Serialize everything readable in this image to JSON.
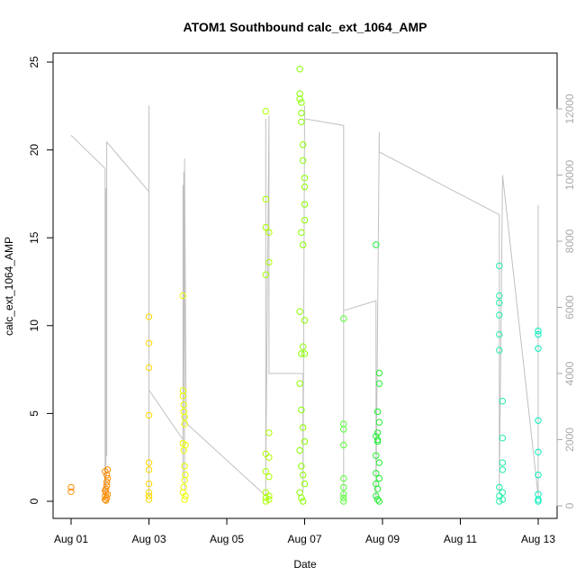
{
  "chart_data": {
    "type": "scatter",
    "title": "ATOM1 Southbound calc_ext_1064_AMP",
    "xlabel": "Date",
    "ylabel": "calc_ext_1064_AMP",
    "x_unit": "days",
    "xlim": [
      "2014-08-01",
      "2014-08-13"
    ],
    "ylim": [
      0,
      25
    ],
    "y2lim": [
      0,
      12000
    ],
    "x_ticks": [
      "Aug 01",
      "Aug 03",
      "Aug 05",
      "Aug 07",
      "Aug 09",
      "Aug 11",
      "Aug 13"
    ],
    "y_ticks": [
      0,
      5,
      10,
      15,
      20,
      25
    ],
    "y2_ticks": [
      0,
      2000,
      4000,
      6000,
      8000,
      10000,
      12000
    ],
    "grid": false,
    "colors": {
      "line": "#c0c0c0",
      "axis": "#000000",
      "right_axis": "#aaaaaa"
    },
    "series": [
      {
        "color": "#ff8c00",
        "x": [
          "2014-08-01 00:00",
          "2014-08-01 00:00",
          "2014-08-01 21:00",
          "2014-08-01 21:00",
          "2014-08-01 21:30",
          "2014-08-01 21:30",
          "2014-08-01 22:00",
          "2014-08-01 22:00",
          "2014-08-01 22:30",
          "2014-08-01 22:00",
          "2014-08-01 21:00",
          "2014-08-01 22:30",
          "2014-08-01 21:30",
          "2014-08-01 22:00",
          "2014-08-01 21:00",
          "2014-08-01 22:30"
        ],
        "y": [
          0.8,
          0.55,
          0.1,
          0.3,
          0.5,
          0.7,
          0.9,
          1.1,
          1.3,
          1.5,
          1.7,
          1.8,
          0.05,
          0.2,
          0.6,
          0.4
        ]
      },
      {
        "color": "#ffd700",
        "x": [
          "2014-08-03 00:00",
          "2014-08-03 00:00",
          "2014-08-03 00:00",
          "2014-08-03 00:00",
          "2014-08-03 00:00",
          "2014-08-03 00:00",
          "2014-08-03 00:00",
          "2014-08-03 00:00",
          "2014-08-03 00:00",
          "2014-08-03 00:00"
        ],
        "y": [
          10.5,
          9.0,
          7.6,
          4.9,
          2.2,
          1.8,
          1.0,
          0.5,
          0.3,
          0.1
        ]
      },
      {
        "color": "#eeff00",
        "x": [
          "2014-08-03 21:00",
          "2014-08-03 21:00",
          "2014-08-03 21:00",
          "2014-08-03 21:30",
          "2014-08-03 21:30",
          "2014-08-03 22:00",
          "2014-08-03 22:00",
          "2014-08-03 22:30",
          "2014-08-03 21:00",
          "2014-08-03 21:30",
          "2014-08-03 22:00",
          "2014-08-03 22:30",
          "2014-08-03 22:00",
          "2014-08-03 21:30",
          "2014-08-03 21:00",
          "2014-08-03 22:30",
          "2014-08-03 22:00"
        ],
        "y": [
          11.7,
          6.3,
          6.0,
          5.5,
          5.1,
          4.8,
          4.4,
          3.2,
          3.3,
          2.9,
          2.0,
          1.5,
          1.2,
          0.8,
          0.5,
          0.3,
          0.1
        ]
      },
      {
        "color": "#aaff00",
        "x": [
          "2014-08-06 00:00",
          "2014-08-06 00:00",
          "2014-08-06 00:00",
          "2014-08-06 02:00",
          "2014-08-06 02:00",
          "2014-08-06 00:00",
          "2014-08-06 02:00",
          "2014-08-06 00:00",
          "2014-08-06 02:00",
          "2014-08-06 00:00",
          "2014-08-06 02:00",
          "2014-08-06 00:00",
          "2014-08-06 02:00",
          "2014-08-06 00:00",
          "2014-08-06 02:00",
          "2014-08-06 00:00"
        ],
        "y": [
          22.2,
          17.2,
          15.6,
          15.3,
          13.6,
          12.9,
          3.9,
          2.7,
          2.5,
          1.7,
          1.4,
          0.5,
          0.3,
          0.2,
          0.1,
          0.0
        ]
      },
      {
        "color": "#88ff00",
        "x": [
          "2014-08-06 21:00",
          "2014-08-06 21:00",
          "2014-08-06 21:00",
          "2014-08-06 22:00",
          "2014-08-06 22:00",
          "2014-08-06 22:00",
          "2014-08-06 23:00",
          "2014-08-06 23:00",
          "2014-08-07 00:00",
          "2014-08-07 00:00",
          "2014-08-07 00:00",
          "2014-08-07 00:00",
          "2014-08-06 22:00",
          "2014-08-06 23:00",
          "2014-08-06 21:00",
          "2014-08-07 00:00",
          "2014-08-06 23:00",
          "2014-08-06 22:00",
          "2014-08-07 00:00",
          "2014-08-06 21:00",
          "2014-08-06 22:00",
          "2014-08-06 23:00",
          "2014-08-07 00:00",
          "2014-08-06 21:00",
          "2014-08-06 22:00",
          "2014-08-06 23:00",
          "2014-08-07 00:00",
          "2014-08-06 21:00",
          "2014-08-06 22:00",
          "2014-08-06 23:00"
        ],
        "y": [
          24.6,
          23.2,
          22.9,
          22.7,
          22.1,
          21.6,
          20.3,
          19.4,
          18.4,
          17.9,
          16.9,
          16.0,
          15.3,
          14.6,
          10.8,
          10.3,
          8.8,
          8.4,
          8.4,
          6.7,
          5.2,
          4.2,
          3.4,
          2.9,
          2.0,
          1.5,
          1.0,
          0.5,
          0.2,
          0.0
        ]
      },
      {
        "color": "#55ff33",
        "x": [
          "2014-08-08 00:00",
          "2014-08-08 00:00",
          "2014-08-08 00:00",
          "2014-08-08 00:00",
          "2014-08-08 00:00",
          "2014-08-08 00:00",
          "2014-08-08 00:00",
          "2014-08-08 00:00",
          "2014-08-08 00:00"
        ],
        "y": [
          10.4,
          4.4,
          4.1,
          3.2,
          1.3,
          0.8,
          0.4,
          0.2,
          0.0
        ]
      },
      {
        "color": "#22ee33",
        "x": [
          "2014-08-08 20:00",
          "2014-08-08 20:00",
          "2014-08-08 21:00",
          "2014-08-08 21:00",
          "2014-08-08 22:00",
          "2014-08-08 22:00",
          "2014-08-08 20:00",
          "2014-08-08 21:00",
          "2014-08-08 22:00",
          "2014-08-08 20:00",
          "2014-08-08 21:00",
          "2014-08-08 22:00",
          "2014-08-08 20:00",
          "2014-08-08 21:00",
          "2014-08-08 22:00",
          "2014-08-08 20:00",
          "2014-08-08 21:00",
          "2014-08-08 22:00"
        ],
        "y": [
          14.6,
          3.7,
          3.5,
          3.9,
          7.3,
          6.7,
          2.6,
          5.1,
          4.5,
          1.6,
          3.4,
          2.2,
          1.0,
          0.7,
          1.3,
          0.3,
          0.1,
          0.0
        ]
      },
      {
        "color": "#22eeaa",
        "x": [
          "2014-08-12 00:00",
          "2014-08-12 00:00",
          "2014-08-12 00:00",
          "2014-08-12 00:00",
          "2014-08-12 00:00",
          "2014-08-12 00:00",
          "2014-08-12 02:00",
          "2014-08-12 02:00",
          "2014-08-12 02:00",
          "2014-08-12 02:00",
          "2014-08-12 00:00",
          "2014-08-12 02:00",
          "2014-08-12 00:00",
          "2014-08-12 02:00",
          "2014-08-12 00:00"
        ],
        "y": [
          13.4,
          11.7,
          11.3,
          10.6,
          9.5,
          8.6,
          5.7,
          3.6,
          2.2,
          1.8,
          0.8,
          0.5,
          0.3,
          0.1,
          0.0
        ]
      },
      {
        "color": "#00eebb",
        "x": [
          "2014-08-13 00:00",
          "2014-08-13 00:00",
          "2014-08-13 00:00",
          "2014-08-13 00:00",
          "2014-08-13 00:00",
          "2014-08-13 00:00",
          "2014-08-13 00:00",
          "2014-08-13 00:00",
          "2014-08-13 00:00"
        ],
        "y": [
          9.7,
          9.5,
          8.7,
          4.6,
          2.8,
          1.5,
          0.4,
          0.1,
          0.0
        ]
      }
    ],
    "line_series": {
      "color": "#c0c0c0",
      "axis": "right",
      "x": [
        "2014-08-01 00:00",
        "2014-08-01 21:00",
        "2014-08-01 21:00",
        "2014-08-01 21:00",
        "2014-08-01 21:30",
        "2014-08-01 21:30",
        "2014-08-01 22:00",
        "2014-08-01 22:00",
        "2014-08-01 22:00",
        "2014-08-03 00:00",
        "2014-08-03 00:00",
        "2014-08-03 00:00",
        "2014-08-03 00:00",
        "2014-08-03 00:00",
        "2014-08-03 21:00",
        "2014-08-03 21:00",
        "2014-08-03 21:00",
        "2014-08-03 21:30",
        "2014-08-03 22:00",
        "2014-08-03 22:00",
        "2014-08-03 22:00",
        "2014-08-03 23:00",
        "2014-08-06 00:00",
        "2014-08-06 00:00",
        "2014-08-06 00:00",
        "2014-08-06 02:00",
        "2014-08-06 02:00",
        "2014-08-06 23:00",
        "2014-08-06 23:00",
        "2014-08-07 00:00",
        "2014-08-07 00:00",
        "2014-08-08 00:00",
        "2014-08-08 00:00",
        "2014-08-08 00:00",
        "2014-08-08 20:00",
        "2014-08-08 20:00",
        "2014-08-08 22:00",
        "2014-08-08 22:00",
        "2014-08-12 00:00",
        "2014-08-12 00:00",
        "2014-08-12 02:00",
        "2014-08-12 02:00",
        "2014-08-13 00:00",
        "2014-08-13 00:00",
        "2014-08-13 00:00",
        "2014-08-13 00:00"
      ],
      "y": [
        11200,
        10200,
        300,
        9000,
        200,
        9600,
        1500,
        11000,
        11000,
        9500,
        300,
        12100,
        11400,
        3500,
        2000,
        9700,
        800,
        10100,
        500,
        10500,
        10300,
        2500,
        300,
        11700,
        1000,
        11800,
        4000,
        4000,
        400,
        12100,
        11700,
        11500,
        200,
        5900,
        6200,
        200,
        11300,
        10700,
        8800,
        400,
        10000,
        10000,
        300,
        9100,
        4400,
        4400
      ]
    }
  }
}
